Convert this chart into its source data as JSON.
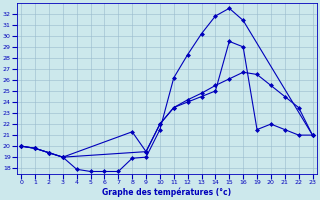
{
  "title": "Graphe des températures (°c)",
  "bg_color": "#cce8ec",
  "line_color": "#0000bb",
  "grid_color": "#99bbcc",
  "x_ticks": [
    0,
    1,
    2,
    3,
    4,
    5,
    6,
    7,
    8,
    9,
    10,
    11,
    12,
    13,
    14,
    15,
    16,
    19,
    20,
    21,
    22,
    23
  ],
  "x_tick_labels": [
    "0",
    "1",
    "2",
    "3",
    "4",
    "5",
    "6",
    "7",
    "8",
    "9",
    "10",
    "11",
    "12",
    "13",
    "14",
    "15",
    "16",
    "19",
    "20",
    "21",
    "22",
    "23"
  ],
  "ylim": [
    17.5,
    33.0
  ],
  "xlim": [
    -0.3,
    23.3
  ],
  "yticks": [
    18,
    19,
    20,
    21,
    22,
    23,
    24,
    25,
    26,
    27,
    28,
    29,
    30,
    31,
    32
  ],
  "line1_x": [
    0,
    1,
    2,
    3,
    4,
    5,
    6,
    7,
    8,
    9,
    10,
    11,
    12,
    13,
    14,
    15,
    16,
    23
  ],
  "line1_y": [
    20.0,
    19.8,
    19.4,
    19.0,
    17.9,
    17.7,
    17.7,
    17.7,
    18.9,
    19.0,
    21.5,
    26.2,
    28.3,
    30.2,
    31.8,
    32.5,
    31.4,
    21.0
  ],
  "line2_x": [
    0,
    1,
    2,
    3,
    9,
    10,
    11,
    12,
    13,
    14,
    15,
    16,
    19,
    20,
    21,
    22,
    23
  ],
  "line2_y": [
    20.0,
    19.8,
    19.4,
    19.0,
    19.5,
    22.0,
    23.5,
    24.2,
    24.8,
    25.5,
    26.1,
    26.7,
    26.5,
    25.5,
    24.5,
    23.5,
    21.0
  ],
  "line3_x": [
    0,
    1,
    2,
    3,
    8,
    9,
    10,
    11,
    12,
    13,
    14,
    15,
    16,
    19,
    20,
    21,
    22,
    23
  ],
  "line3_y": [
    20.0,
    19.8,
    19.4,
    19.0,
    21.3,
    19.5,
    22.0,
    23.5,
    24.0,
    24.5,
    25.0,
    29.5,
    29.0,
    21.5,
    22.0,
    21.5,
    21.0,
    21.0
  ]
}
